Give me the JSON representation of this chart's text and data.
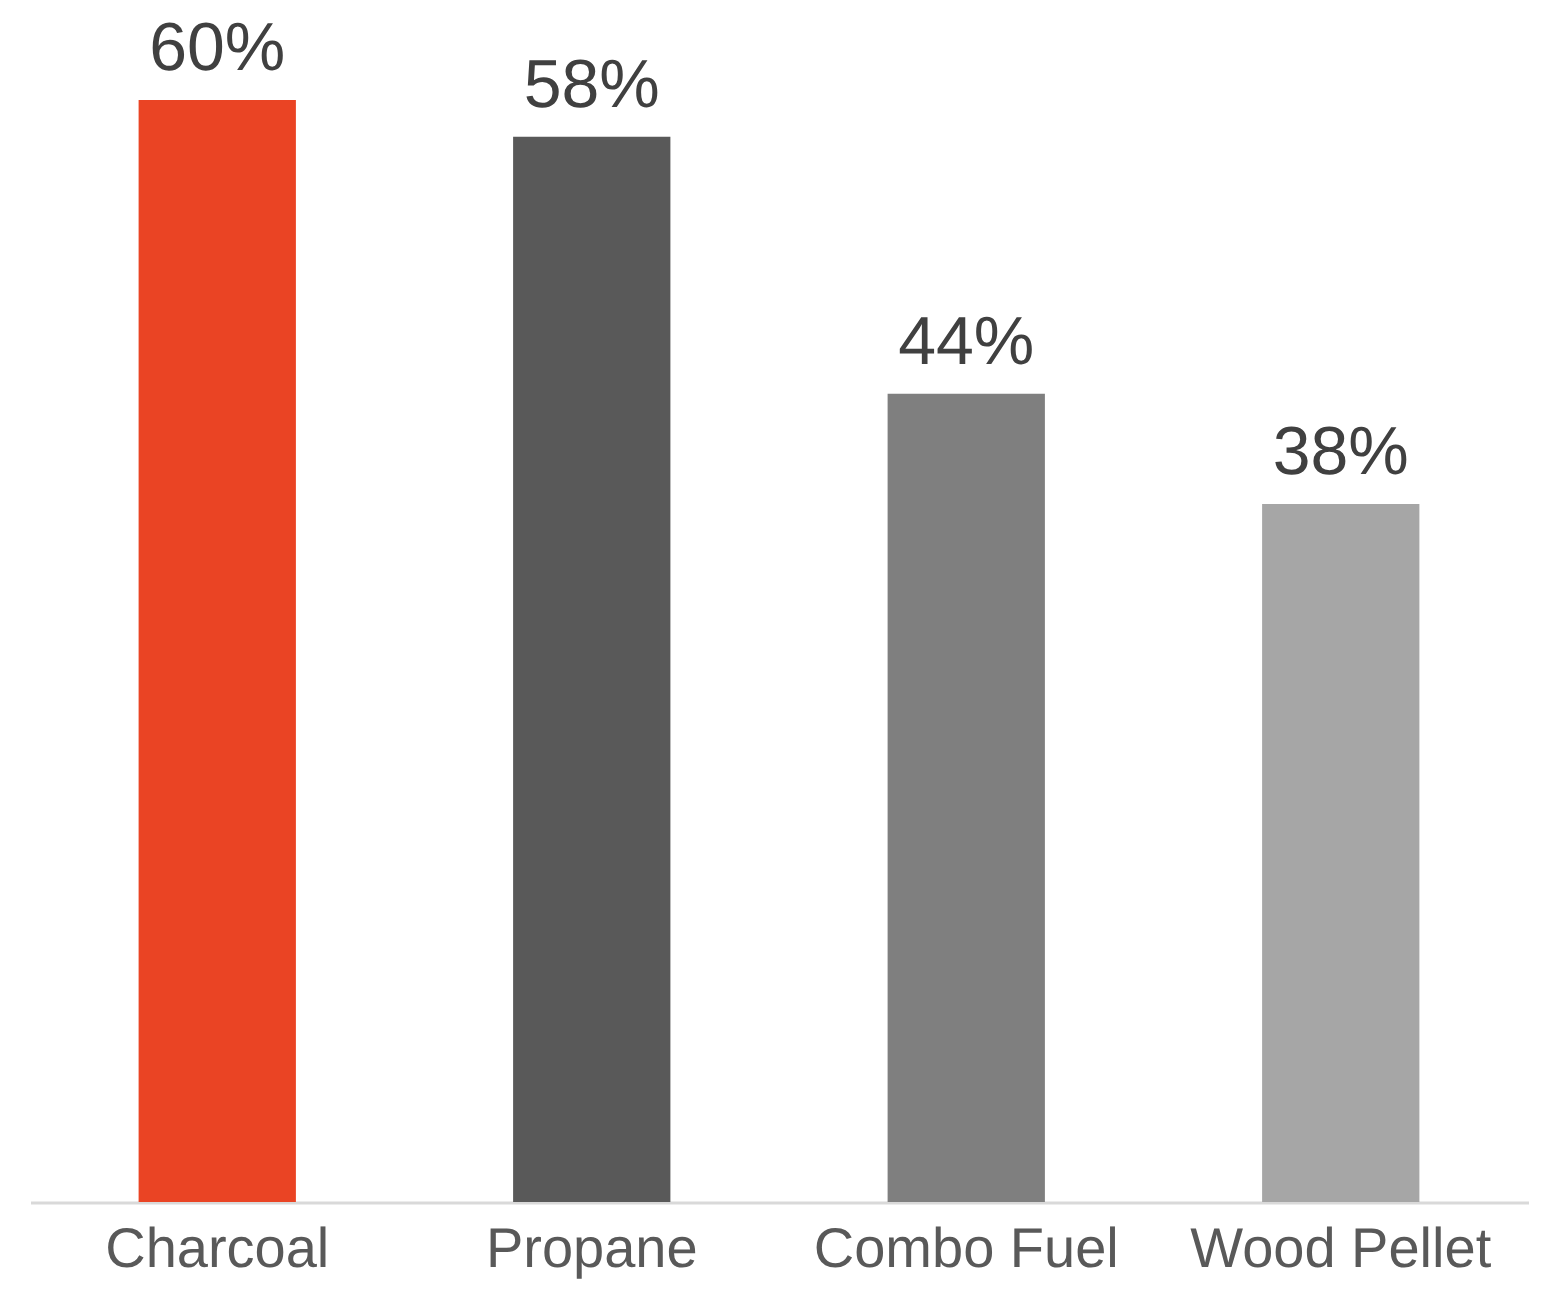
{
  "chart_data": {
    "type": "bar",
    "categories": [
      "Charcoal",
      "Propane",
      "Combo Fuel",
      "Wood Pellet"
    ],
    "values": [
      60,
      58,
      44,
      38
    ],
    "value_labels": [
      "60%",
      "58%",
      "44%",
      "38%"
    ],
    "colors": [
      "#ea4424",
      "#595959",
      "#7f7f7f",
      "#a6a6a6"
    ],
    "legend": false
  }
}
